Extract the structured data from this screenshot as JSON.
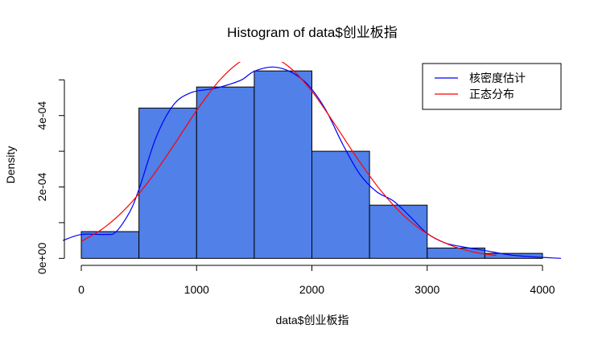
{
  "chart_data": {
    "type": "bar",
    "title": "Histogram of data$创业板指",
    "xlabel": "data$创业板指",
    "ylabel": "Density",
    "xlim": [
      0,
      4000
    ],
    "ylim": [
      0,
      0.0005
    ],
    "x_ticks": [
      0,
      1000,
      2000,
      3000,
      4000
    ],
    "x_tick_labels": [
      "0",
      "1000",
      "2000",
      "3000",
      "4000"
    ],
    "y_ticks": [
      0,
      0.0001,
      0.0002,
      0.0003,
      0.0004,
      0.0005
    ],
    "y_tick_labels": [
      "0e+00",
      "",
      "2e-04",
      "",
      "4e-04",
      ""
    ],
    "grid": false,
    "bar_color": "#5080E8",
    "bins": [
      {
        "from": 0,
        "to": 500,
        "density": 7.5e-05
      },
      {
        "from": 500,
        "to": 1000,
        "density": 0.000421
      },
      {
        "from": 1000,
        "to": 1500,
        "density": 0.00048
      },
      {
        "from": 1500,
        "to": 2000,
        "density": 0.000525
      },
      {
        "from": 2000,
        "to": 2500,
        "density": 0.0003
      },
      {
        "from": 2500,
        "to": 3000,
        "density": 0.000149
      },
      {
        "from": 3000,
        "to": 3500,
        "density": 2.9e-05
      },
      {
        "from": 3500,
        "to": 4000,
        "density": 1.4e-05
      }
    ],
    "series": [
      {
        "name": "核密度估计",
        "type": "line",
        "color": "#0000FF",
        "x": [
          -160,
          0,
          210,
          300,
          420,
          505,
          650,
          800,
          950,
          1120,
          1240,
          1390,
          1500,
          1665,
          1830,
          1975,
          2120,
          2270,
          2415,
          2560,
          2710,
          2855,
          3000,
          3150,
          3295,
          3500,
          3765,
          4160
        ],
        "y": [
          5e-05,
          6.7e-05,
          6.7e-05,
          7.4e-05,
          0.00013,
          0.000198,
          0.00034,
          0.00043,
          0.000464,
          0.000474,
          0.000483,
          0.0005,
          0.000524,
          0.000536,
          0.00052,
          0.000483,
          0.000416,
          0.000318,
          0.000236,
          0.000187,
          0.00016,
          0.000116,
          7e-05,
          4.4e-05,
          3.3e-05,
          2.2e-05,
          8e-06,
          0.0
        ]
      },
      {
        "name": "正态分布",
        "type": "line",
        "color": "#FF0000",
        "x": [
          0,
          200,
          400,
          600,
          800,
          1000,
          1200,
          1400,
          1600,
          1800,
          2000,
          2200,
          2400,
          2600,
          2800,
          3000,
          3200,
          3400,
          3600
        ],
        "y": [
          4.75e-05,
          8.64e-05,
          0.0001444,
          0.0002226,
          0.000316,
          0.000414,
          0.000499,
          0.000555,
          0.000569,
          0.000537,
          0.000468,
          0.000375,
          0.000277,
          0.000189,
          0.000119,
          6.9e-05,
          3.7e-05,
          1.8e-05,
          8e-06
        ]
      }
    ],
    "legend": {
      "position": "top-right",
      "entries": [
        "核密度估计",
        "正态分布"
      ]
    }
  }
}
